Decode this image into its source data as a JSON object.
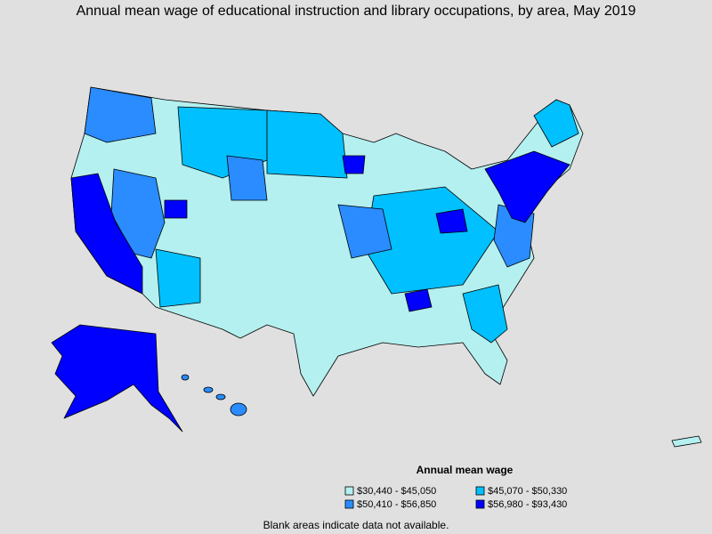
{
  "title": "Annual mean wage of educational instruction and library occupations, by area, May 2019",
  "legend": {
    "title": "Annual mean wage",
    "items": [
      {
        "label": "$30,440 - $45,050",
        "color": "#b4f0f0"
      },
      {
        "label": "$45,070 - $50,330",
        "color": "#00c0ff"
      },
      {
        "label": "$50,410 - $56,850",
        "color": "#2a8cff"
      },
      {
        "label": "$56,980 - $93,430",
        "color": "#0000ff"
      }
    ]
  },
  "note": "Blank areas indicate data not available."
}
